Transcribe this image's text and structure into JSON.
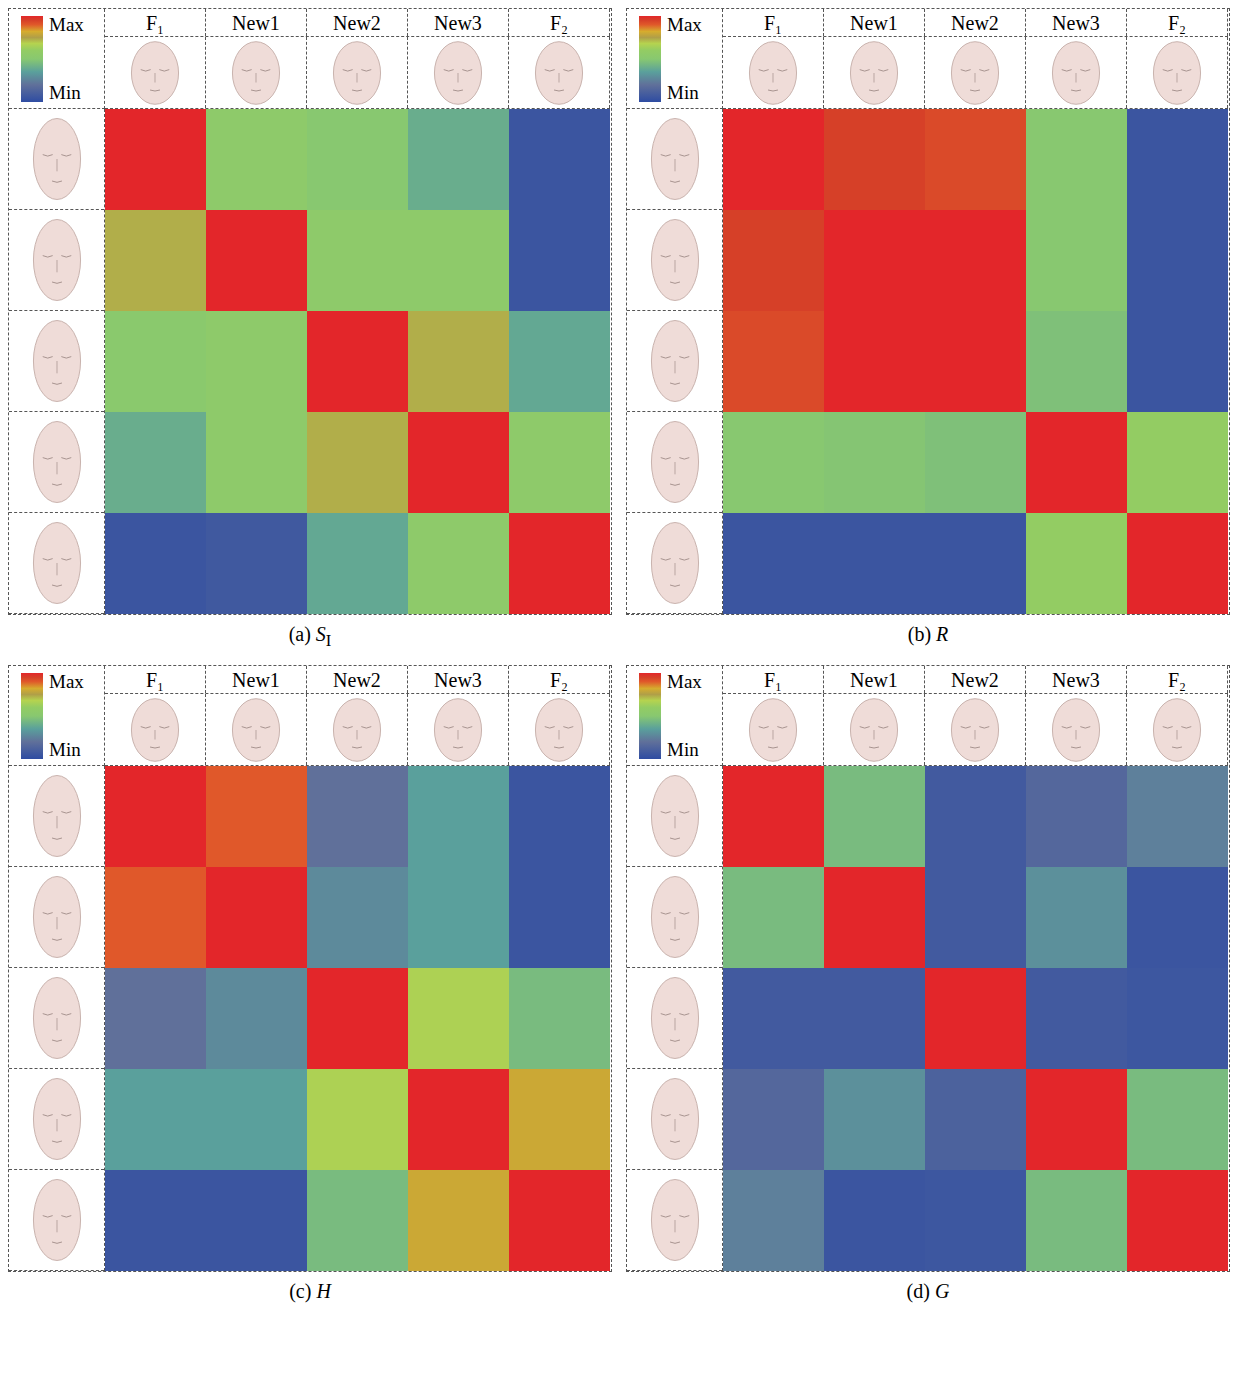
{
  "chart_data": [
    {
      "type": "heatmap",
      "label": "(a)",
      "title": "S",
      "title_subscript": "I",
      "x": [
        "F₁",
        "New1",
        "New2",
        "New3",
        "F₂"
      ],
      "cells": [
        [
          1,
          0.55,
          0.5,
          0.4,
          0.05
        ],
        [
          0.73,
          1,
          0.55,
          0.55,
          0.05
        ],
        [
          0.52,
          0.55,
          1,
          0.73,
          0.38
        ],
        [
          0.4,
          0.55,
          0.73,
          1,
          0.55
        ],
        [
          0.05,
          0.07,
          0.38,
          0.55,
          1
        ]
      ],
      "colorbar": {
        "range": [
          0,
          1
        ],
        "ticks": [
          {
            "value": 1,
            "label": "Max"
          },
          {
            "value": 0,
            "label": "Min"
          }
        ]
      }
    },
    {
      "type": "heatmap",
      "label": "(b)",
      "title": "R",
      "x": [
        "F₁",
        "New1",
        "New2",
        "New3",
        "F₂"
      ],
      "cells": [
        [
          1,
          0.95,
          0.93,
          0.5,
          0.05
        ],
        [
          0.95,
          1,
          1,
          0.5,
          0.05
        ],
        [
          0.93,
          1,
          1,
          0.47,
          0.05
        ],
        [
          0.5,
          0.49,
          0.47,
          1,
          0.6
        ],
        [
          0.05,
          0.05,
          0.05,
          0.6,
          1
        ]
      ],
      "colorbar": {
        "range": [
          0,
          1
        ],
        "ticks": [
          {
            "value": 1,
            "label": "Max"
          },
          {
            "value": 0,
            "label": "Min"
          }
        ]
      }
    },
    {
      "type": "heatmap",
      "label": "(c)",
      "title": "H",
      "x": [
        "F₁",
        "New1",
        "New2",
        "New3",
        "F₂"
      ],
      "cells": [
        [
          1,
          0.9,
          0.2,
          0.35,
          0.05
        ],
        [
          0.9,
          1,
          0.28,
          0.35,
          0.05
        ],
        [
          0.2,
          0.28,
          1,
          0.66,
          0.45
        ],
        [
          0.35,
          0.35,
          0.66,
          1,
          0.8
        ],
        [
          0.05,
          0.05,
          0.45,
          0.8,
          1
        ]
      ],
      "colorbar": {
        "range": [
          0,
          1
        ],
        "ticks": [
          {
            "value": 1,
            "label": "Max"
          },
          {
            "value": 0,
            "label": "Min"
          }
        ]
      }
    },
    {
      "type": "heatmap",
      "label": "(d)",
      "title": "G",
      "x": [
        "F₁",
        "New1",
        "New2",
        "New3",
        "F₂"
      ],
      "cells": [
        [
          1,
          0.45,
          0.08,
          0.15,
          0.25
        ],
        [
          0.45,
          1,
          0.08,
          0.3,
          0.05
        ],
        [
          0.08,
          0.08,
          1,
          0.08,
          0.06
        ],
        [
          0.15,
          0.3,
          0.12,
          1,
          0.45
        ],
        [
          0.25,
          0.05,
          0.06,
          0.45,
          1
        ]
      ],
      "colorbar": {
        "range": [
          0,
          1
        ],
        "ticks": [
          {
            "value": 1,
            "label": "Max"
          },
          {
            "value": 0,
            "label": "Min"
          }
        ]
      }
    }
  ]
}
